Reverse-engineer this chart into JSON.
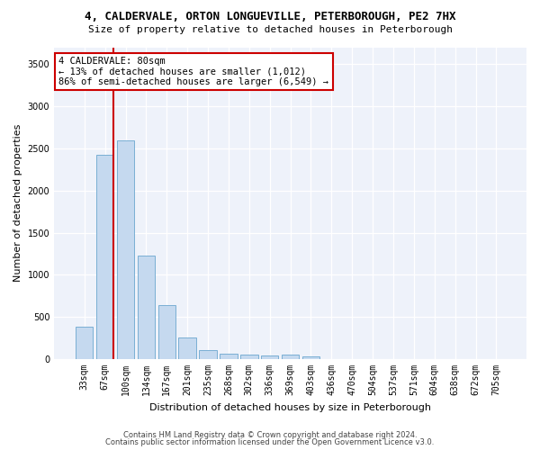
{
  "title1": "4, CALDERVALE, ORTON LONGUEVILLE, PETERBOROUGH, PE2 7HX",
  "title2": "Size of property relative to detached houses in Peterborough",
  "xlabel": "Distribution of detached houses by size in Peterborough",
  "ylabel": "Number of detached properties",
  "categories": [
    "33sqm",
    "67sqm",
    "100sqm",
    "134sqm",
    "167sqm",
    "201sqm",
    "235sqm",
    "268sqm",
    "302sqm",
    "336sqm",
    "369sqm",
    "403sqm",
    "436sqm",
    "470sqm",
    "504sqm",
    "537sqm",
    "571sqm",
    "604sqm",
    "638sqm",
    "672sqm",
    "705sqm"
  ],
  "values": [
    390,
    2420,
    2600,
    1230,
    640,
    260,
    110,
    60,
    55,
    40,
    50,
    35,
    0,
    0,
    0,
    0,
    0,
    0,
    0,
    0,
    0
  ],
  "bar_color": "#c5d9ef",
  "bar_edge_color": "#7aafd4",
  "vline_color": "#cc0000",
  "vline_x": 1.43,
  "annotation_text": "4 CALDERVALE: 80sqm\n← 13% of detached houses are smaller (1,012)\n86% of semi-detached houses are larger (6,549) →",
  "ylim": [
    0,
    3700
  ],
  "yticks": [
    0,
    500,
    1000,
    1500,
    2000,
    2500,
    3000,
    3500
  ],
  "footer1": "Contains HM Land Registry data © Crown copyright and database right 2024.",
  "footer2": "Contains public sector information licensed under the Open Government Licence v3.0.",
  "bg_color": "#ffffff",
  "plot_bg_color": "#eef2fa",
  "grid_color": "#ffffff",
  "title1_fontsize": 9,
  "title2_fontsize": 8,
  "xlabel_fontsize": 8,
  "ylabel_fontsize": 8,
  "tick_fontsize": 7,
  "annot_fontsize": 7.5
}
